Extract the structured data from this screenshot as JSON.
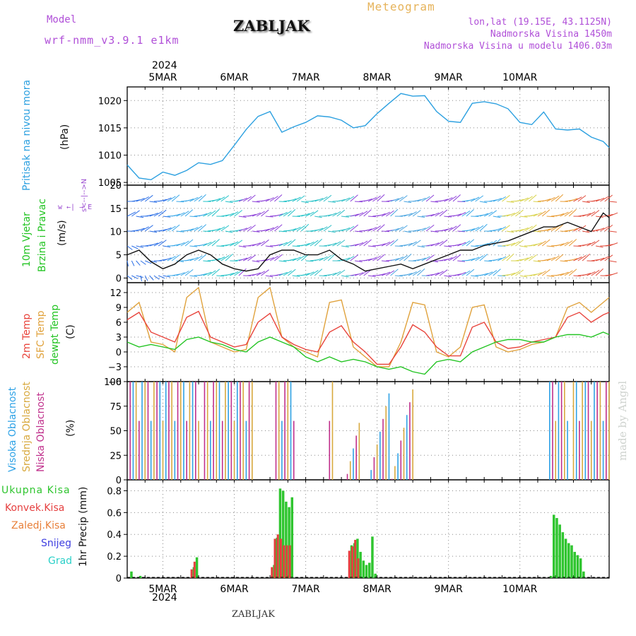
{
  "header": {
    "model_label": "Model",
    "model_name": "wrf-nmm_v3.9.1 e1km",
    "title": "ZABLJAK",
    "meteogram": "Meteogram",
    "coords": "lon,lat (19.15E, 43.1125N)",
    "elevation": "Nadmorska Visina 1450m",
    "model_elevation": "Nadmorska Visina u modelu 1406.03m"
  },
  "time_axis": {
    "year": "2024",
    "days": [
      "5MAR",
      "6MAR",
      "7MAR",
      "8MAR",
      "9MAR",
      "10MAR"
    ]
  },
  "footer": {
    "station": "ZABLJAK",
    "signature": "made by Angel"
  },
  "panels": {
    "pressure": {
      "label": "Pritisak na nivou mora",
      "unit": "(hPa)"
    },
    "wind": {
      "label1": "10m Vjetar",
      "label2": "Brzina i Pravac",
      "unit": "(m/s)",
      "compass": "w ←| → E",
      "compass2": "s<--|-->N"
    },
    "temp": {
      "l1": "2m Temp",
      "l2": "SFC Temp",
      "l3": "dewpt Temp",
      "unit": "(C)"
    },
    "cloud": {
      "l1": "Visoka Oblacnost",
      "l2": "Srednja Oblacnost",
      "l3": "Niska Oblacnost",
      "unit": "(%)"
    },
    "precip": {
      "legend": [
        "Ukupna Kisa",
        "Konvek.Kisa",
        "Zaledj.Kisa",
        "Snijeg",
        "Grad"
      ],
      "unit": "1hr Precip (mm)"
    }
  },
  "colors": {
    "pressure": "#2ca0e0",
    "t2m": "#e8443c",
    "sfc": "#e0a23c",
    "dewpt": "#22c422",
    "cloud_high": "#2ea2e6",
    "cloud_mid": "#d8a93e",
    "cloud_low": "#c0308c",
    "precip_total": "#2fc52f",
    "precip_conv": "#e53e3e",
    "precip_frz": "#e8803a",
    "precip_snow": "#3f3fe0",
    "precip_hail": "#2ad0c8"
  },
  "chart_data": [
    {
      "type": "line",
      "name": "pressure",
      "x_unit": "hours since 5MAR 00 UTC",
      "ylim": [
        1004.5,
        1022.5
      ],
      "yticks": [
        1005,
        1010,
        1015,
        1020
      ],
      "x": [
        -12,
        -8,
        -4,
        0,
        4,
        8,
        12,
        16,
        20,
        24,
        28,
        32,
        36,
        40,
        44,
        48,
        52,
        56,
        60,
        64,
        68,
        72,
        76,
        80,
        84,
        88,
        92,
        96,
        100,
        104,
        108,
        112,
        116,
        120,
        124,
        128,
        132,
        136,
        140,
        144,
        148,
        150
      ],
      "values": [
        1008.2,
        1005.8,
        1005.5,
        1006.9,
        1006.3,
        1007.2,
        1008.6,
        1008.3,
        1009.0,
        1011.8,
        1014.7,
        1017.1,
        1018.0,
        1014.2,
        1015.2,
        1016.0,
        1017.2,
        1017.0,
        1016.4,
        1015.0,
        1015.4,
        1017.6,
        1019.5,
        1021.3,
        1020.8,
        1020.9,
        1018.0,
        1016.2,
        1016.0,
        1019.5,
        1019.8,
        1019.4,
        1018.5,
        1016.0,
        1015.6,
        1017.9,
        1014.8,
        1014.6,
        1014.8,
        1013.3,
        1012.5,
        1011.4
      ]
    },
    {
      "type": "line",
      "name": "wind speed",
      "ylim": [
        -1,
        20
      ],
      "yticks": [
        0,
        5,
        10,
        15,
        20
      ],
      "x": [
        -12,
        -8,
        -4,
        0,
        4,
        8,
        12,
        16,
        20,
        24,
        28,
        32,
        36,
        40,
        44,
        48,
        52,
        56,
        60,
        64,
        68,
        72,
        76,
        80,
        84,
        88,
        92,
        96,
        100,
        104,
        108,
        112,
        116,
        120,
        124,
        128,
        132,
        136,
        140,
        144,
        148,
        150
      ],
      "values": [
        5,
        6,
        3.5,
        2,
        3,
        5,
        6,
        5,
        3,
        2,
        1.5,
        2,
        5,
        6,
        6,
        5,
        5,
        6,
        4,
        3,
        1.5,
        2,
        2.5,
        3,
        2,
        3,
        4,
        5,
        6,
        6,
        7,
        7.5,
        8,
        9,
        10,
        11,
        11,
        12,
        11,
        10,
        14,
        13
      ]
    },
    {
      "type": "line",
      "name": "temperature",
      "ylim": [
        -6,
        14
      ],
      "yticks": [
        -6,
        -3,
        0,
        3,
        6,
        9,
        12
      ],
      "x": [
        -12,
        -8,
        -4,
        0,
        4,
        8,
        12,
        16,
        20,
        24,
        28,
        32,
        36,
        40,
        44,
        48,
        52,
        56,
        60,
        64,
        68,
        72,
        76,
        80,
        84,
        88,
        92,
        96,
        100,
        104,
        108,
        112,
        116,
        120,
        124,
        128,
        132,
        136,
        140,
        144,
        148,
        150
      ],
      "series": [
        {
          "name": "2m Temp",
          "values": [
            6.5,
            8,
            4,
            3,
            2,
            7,
            8.2,
            3,
            2,
            1,
            1.5,
            6,
            7.8,
            3,
            1.5,
            0.5,
            0,
            4,
            5.3,
            2,
            0,
            -2.5,
            -2.5,
            1,
            5.5,
            4,
            1,
            -0.8,
            -0.8,
            5,
            6,
            2,
            0.7,
            1,
            2,
            2.5,
            3,
            7,
            8,
            6,
            7.5,
            8
          ]
        },
        {
          "name": "SFC Temp",
          "values": [
            8,
            10,
            2,
            1.5,
            0,
            11,
            13,
            2,
            1,
            0,
            0.5,
            11,
            13,
            3,
            1,
            0,
            -1,
            10,
            10.5,
            1,
            -1,
            -3,
            -3,
            2,
            10,
            9.5,
            0,
            -1,
            1,
            9,
            9.5,
            1,
            0,
            0.5,
            1.5,
            2,
            3,
            9,
            10,
            8,
            10,
            11
          ]
        },
        {
          "name": "dewpt Temp",
          "values": [
            2,
            1,
            1.5,
            1,
            0.5,
            2.5,
            3,
            2,
            1.5,
            0.5,
            0,
            2,
            3,
            2,
            1,
            -1,
            -2,
            -1,
            -2,
            -1.5,
            -2,
            -3,
            -3.5,
            -3,
            -4,
            -4.5,
            -2,
            -1.5,
            -2,
            0,
            1,
            2,
            2.5,
            2.5,
            2,
            2,
            3,
            3.5,
            3.5,
            3,
            4,
            3.5
          ]
        }
      ]
    },
    {
      "type": "bar",
      "name": "cloud cover",
      "ylim": [
        0,
        100
      ],
      "yticks": [
        0,
        25,
        50,
        75,
        100
      ]
    },
    {
      "type": "bar",
      "name": "1hr precip",
      "ylim": [
        0,
        0.9
      ],
      "yticks": [
        0,
        0.2,
        0.4,
        0.6,
        0.8
      ],
      "x": [
        -11,
        -8,
        10,
        11,
        37,
        38,
        39,
        40,
        41,
        42,
        43,
        63,
        64,
        65,
        66,
        67,
        68,
        69,
        70,
        71,
        130,
        131,
        132,
        133,
        134,
        135,
        136,
        137,
        138,
        139,
        140,
        141
      ],
      "series": [
        {
          "name": "Ukupna Kisa",
          "values": [
            0.06,
            0.02,
            0.1,
            0.19,
            0.12,
            0.37,
            0.82,
            0.8,
            0.7,
            0.65,
            0.74,
            0.3,
            0.32,
            0.36,
            0.24,
            0.16,
            0.12,
            0.14,
            0.38,
            0.04,
            0.02,
            0.58,
            0.55,
            0.49,
            0.42,
            0.36,
            0.32,
            0.3,
            0.24,
            0.21,
            0.18,
            0.06
          ]
        },
        {
          "name": "Konvek.Kisa",
          "values": [
            0,
            0,
            0.08,
            0.15,
            0.1,
            0.36,
            0.4,
            0.36,
            0.3,
            0.3,
            0.3,
            0.25,
            0.29,
            0.35,
            0.18,
            0,
            0,
            0,
            0,
            0,
            0,
            0,
            0,
            0,
            0,
            0,
            0,
            0,
            0,
            0,
            0,
            0
          ]
        }
      ]
    }
  ]
}
